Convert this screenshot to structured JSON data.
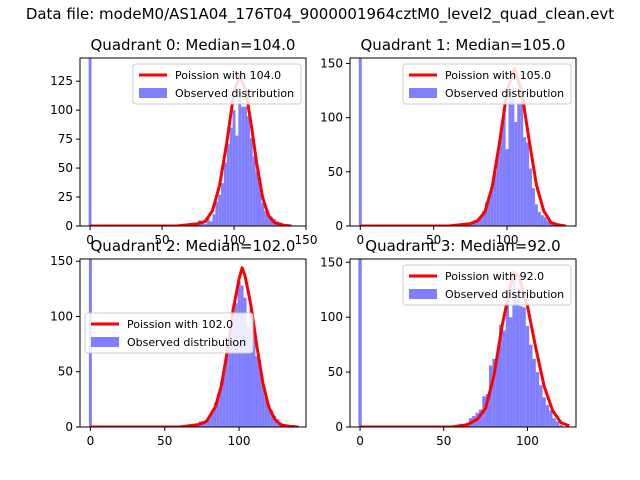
{
  "figure": {
    "title": "Data file: modeM0/AS1A04_176T04_9000001964cztM0_level2_quad_clean.evt",
    "colors": {
      "poisson": "#ff0000",
      "observed": "#7f7fff",
      "axis": "#000000"
    }
  },
  "chart_data": [
    {
      "type": "bar",
      "title": "Quadrant 0: Median=104.0",
      "median": 104.0,
      "xlim": [
        -7,
        150
      ],
      "ylim": [
        0,
        145
      ],
      "xticks": [
        0,
        50,
        100,
        150
      ],
      "yticks": [
        0,
        25,
        50,
        75,
        100,
        125
      ],
      "legend_position": "top-right",
      "legend": {
        "poisson_label": "Poission with 104.0",
        "observed_label": "Observed distribution"
      },
      "bins": [
        [
          0,
          145
        ],
        [
          69,
          1
        ],
        [
          74,
          2
        ],
        [
          76,
          5
        ],
        [
          78,
          3
        ],
        [
          80,
          2
        ],
        [
          82,
          6
        ],
        [
          84,
          4
        ],
        [
          86,
          10
        ],
        [
          88,
          21
        ],
        [
          90,
          27
        ],
        [
          92,
          37
        ],
        [
          94,
          55
        ],
        [
          96,
          71
        ],
        [
          98,
          85
        ],
        [
          100,
          100
        ],
        [
          102,
          78
        ],
        [
          104,
          118
        ],
        [
          106,
          103
        ],
        [
          108,
          103
        ],
        [
          110,
          95
        ],
        [
          112,
          76
        ],
        [
          114,
          60
        ],
        [
          116,
          47
        ],
        [
          118,
          41
        ],
        [
          120,
          20
        ],
        [
          122,
          13
        ],
        [
          124,
          10
        ],
        [
          126,
          8
        ],
        [
          128,
          6
        ],
        [
          130,
          4
        ],
        [
          132,
          3
        ],
        [
          134,
          2
        ],
        [
          136,
          1
        ]
      ],
      "poisson_curve": [
        [
          0,
          0
        ],
        [
          60,
          0
        ],
        [
          75,
          2
        ],
        [
          80,
          4
        ],
        [
          85,
          13
        ],
        [
          90,
          35
        ],
        [
          95,
          72
        ],
        [
          100,
          116
        ],
        [
          104,
          130
        ],
        [
          108,
          118
        ],
        [
          112,
          87
        ],
        [
          116,
          52
        ],
        [
          120,
          24
        ],
        [
          124,
          9
        ],
        [
          128,
          3
        ],
        [
          135,
          0.5
        ],
        [
          140,
          0
        ]
      ]
    },
    {
      "type": "bar",
      "title": "Quadrant 1: Median=105.0",
      "median": 105.0,
      "xlim": [
        -7,
        147
      ],
      "ylim": [
        0,
        155
      ],
      "xticks": [
        0,
        50,
        100
      ],
      "yticks": [
        0,
        50,
        100,
        150
      ],
      "legend_position": "top-right",
      "legend": {
        "poisson_label": "Poission with 105.0",
        "observed_label": "Observed distribution"
      },
      "bins": [
        [
          0,
          155
        ],
        [
          62,
          1
        ],
        [
          70,
          2
        ],
        [
          72,
          3
        ],
        [
          76,
          2
        ],
        [
          78,
          5
        ],
        [
          80,
          6
        ],
        [
          82,
          7
        ],
        [
          84,
          14
        ],
        [
          86,
          22
        ],
        [
          88,
          27
        ],
        [
          90,
          36
        ],
        [
          92,
          50
        ],
        [
          94,
          70
        ],
        [
          96,
          91
        ],
        [
          98,
          108
        ],
        [
          100,
          71
        ],
        [
          102,
          125
        ],
        [
          104,
          128
        ],
        [
          106,
          96
        ],
        [
          108,
          113
        ],
        [
          110,
          124
        ],
        [
          112,
          82
        ],
        [
          114,
          77
        ],
        [
          116,
          53
        ],
        [
          118,
          35
        ],
        [
          120,
          20
        ],
        [
          122,
          13
        ],
        [
          124,
          10
        ],
        [
          126,
          8
        ],
        [
          128,
          5
        ],
        [
          130,
          4
        ],
        [
          132,
          2
        ]
      ],
      "poisson_curve": [
        [
          0,
          0
        ],
        [
          60,
          0
        ],
        [
          75,
          2
        ],
        [
          80,
          5
        ],
        [
          85,
          13
        ],
        [
          90,
          37
        ],
        [
          95,
          78
        ],
        [
          100,
          124
        ],
        [
          105,
          145
        ],
        [
          110,
          124
        ],
        [
          115,
          80
        ],
        [
          120,
          38
        ],
        [
          125,
          14
        ],
        [
          130,
          3
        ],
        [
          135,
          1
        ],
        [
          140,
          0
        ]
      ]
    },
    {
      "type": "bar",
      "title": "Quadrant 2: Median=102.0",
      "median": 102.0,
      "xlim": [
        -7,
        145
      ],
      "ylim": [
        0,
        152
      ],
      "xticks": [
        0,
        50,
        100
      ],
      "yticks": [
        0,
        50,
        100,
        150
      ],
      "legend_position": "center-left",
      "legend": {
        "poisson_label": "Poission with 102.0",
        "observed_label": "Observed distribution"
      },
      "bins": [
        [
          0,
          152
        ],
        [
          68,
          1
        ],
        [
          72,
          3
        ],
        [
          74,
          5
        ],
        [
          76,
          4
        ],
        [
          78,
          6
        ],
        [
          80,
          10
        ],
        [
          82,
          13
        ],
        [
          84,
          22
        ],
        [
          86,
          30
        ],
        [
          88,
          41
        ],
        [
          90,
          52
        ],
        [
          92,
          66
        ],
        [
          94,
          87
        ],
        [
          96,
          102
        ],
        [
          98,
          112
        ],
        [
          100,
          132
        ],
        [
          102,
          128
        ],
        [
          104,
          117
        ],
        [
          106,
          91
        ],
        [
          108,
          108
        ],
        [
          110,
          83
        ],
        [
          112,
          64
        ],
        [
          114,
          56
        ],
        [
          116,
          38
        ],
        [
          118,
          27
        ],
        [
          120,
          20
        ],
        [
          122,
          15
        ],
        [
          124,
          10
        ],
        [
          126,
          7
        ],
        [
          128,
          4
        ],
        [
          130,
          2
        ],
        [
          132,
          1
        ]
      ],
      "poisson_curve": [
        [
          0,
          0
        ],
        [
          60,
          0
        ],
        [
          72,
          2
        ],
        [
          78,
          5
        ],
        [
          84,
          18
        ],
        [
          88,
          37
        ],
        [
          92,
          68
        ],
        [
          96,
          106
        ],
        [
          100,
          134
        ],
        [
          102,
          144
        ],
        [
          104,
          137
        ],
        [
          108,
          110
        ],
        [
          112,
          73
        ],
        [
          116,
          40
        ],
        [
          120,
          18
        ],
        [
          124,
          7
        ],
        [
          128,
          2
        ],
        [
          134,
          0.5
        ],
        [
          140,
          0
        ]
      ]
    },
    {
      "type": "bar",
      "title": "Quadrant 3: Median=92.0",
      "median": 92.0,
      "xlim": [
        -6,
        129
      ],
      "ylim": [
        0,
        153
      ],
      "xticks": [
        0,
        50,
        100
      ],
      "yticks": [
        0,
        50,
        100,
        150
      ],
      "legend_position": "top-right",
      "legend": {
        "poisson_label": "Poission with 92.0",
        "observed_label": "Observed distribution"
      },
      "bins": [
        [
          0,
          153
        ],
        [
          56,
          1
        ],
        [
          58,
          2
        ],
        [
          60,
          3
        ],
        [
          62,
          2
        ],
        [
          64,
          4
        ],
        [
          66,
          8
        ],
        [
          68,
          10
        ],
        [
          70,
          13
        ],
        [
          72,
          16
        ],
        [
          74,
          28
        ],
        [
          76,
          30
        ],
        [
          78,
          56
        ],
        [
          80,
          62
        ],
        [
          82,
          65
        ],
        [
          84,
          93
        ],
        [
          86,
          88
        ],
        [
          88,
          115
        ],
        [
          90,
          100
        ],
        [
          92,
          142
        ],
        [
          94,
          120
        ],
        [
          96,
          110
        ],
        [
          98,
          109
        ],
        [
          100,
          92
        ],
        [
          102,
          75
        ],
        [
          104,
          62
        ],
        [
          106,
          50
        ],
        [
          108,
          38
        ],
        [
          110,
          27
        ],
        [
          112,
          20
        ],
        [
          114,
          15
        ],
        [
          116,
          8
        ],
        [
          118,
          5
        ],
        [
          120,
          2
        ]
      ],
      "poisson_curve": [
        [
          0,
          0
        ],
        [
          55,
          0
        ],
        [
          64,
          2
        ],
        [
          70,
          7
        ],
        [
          75,
          17
        ],
        [
          80,
          47
        ],
        [
          85,
          93
        ],
        [
          90,
          130
        ],
        [
          92,
          140
        ],
        [
          95,
          137
        ],
        [
          100,
          110
        ],
        [
          105,
          72
        ],
        [
          110,
          37
        ],
        [
          115,
          15
        ],
        [
          120,
          4
        ],
        [
          125,
          1
        ]
      ]
    }
  ]
}
